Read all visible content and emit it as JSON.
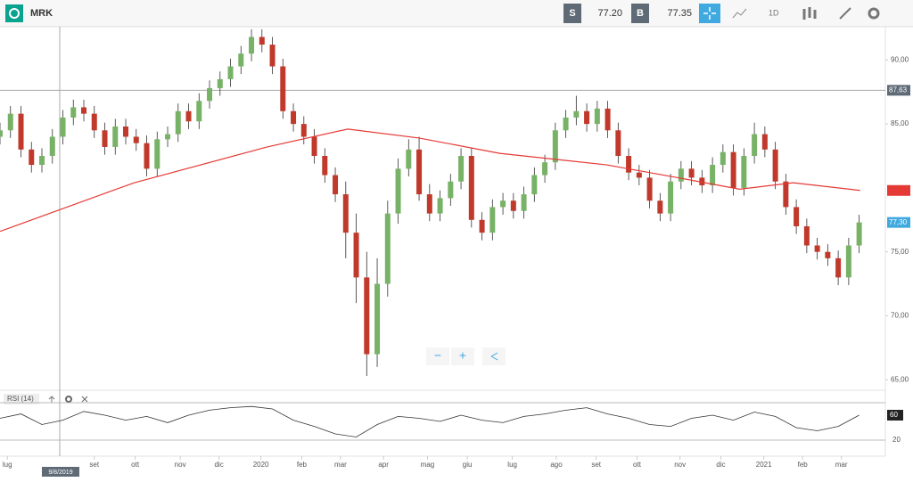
{
  "toolbar": {
    "symbol": "MRK",
    "sell_label": "S",
    "sell_price": "77.20",
    "buy_label": "B",
    "buy_price": "77.35",
    "interval": "1D"
  },
  "controls": {
    "zoom_out": "−",
    "zoom_in": "+"
  },
  "chart_data": {
    "type": "candlestick",
    "xlim": [
      0,
      84.5
    ],
    "ylim": [
      64.6,
      92.6
    ],
    "xticks": [
      {
        "value": 0.7,
        "label": "lug"
      },
      {
        "value": 9.0,
        "label": "set"
      },
      {
        "value": 12.9,
        "label": "ott"
      },
      {
        "value": 17.2,
        "label": "nov"
      },
      {
        "value": 20.9,
        "label": "dic"
      },
      {
        "value": 24.9,
        "label": "2020"
      },
      {
        "value": 28.8,
        "label": "feb"
      },
      {
        "value": 32.5,
        "label": "mar"
      },
      {
        "value": 36.6,
        "label": "apr"
      },
      {
        "value": 40.8,
        "label": "mag"
      },
      {
        "value": 44.6,
        "label": "giu"
      },
      {
        "value": 48.9,
        "label": "lug"
      },
      {
        "value": 53.1,
        "label": "ago"
      },
      {
        "value": 56.9,
        "label": "set"
      },
      {
        "value": 60.8,
        "label": "ott"
      },
      {
        "value": 64.9,
        "label": "nov"
      },
      {
        "value": 68.8,
        "label": "dic"
      },
      {
        "value": 72.9,
        "label": "2021"
      },
      {
        "value": 76.6,
        "label": "feb"
      },
      {
        "value": 80.3,
        "label": "mar"
      }
    ],
    "yticks": [
      {
        "value": 90,
        "label": "90,00"
      },
      {
        "value": 85,
        "label": "85,00"
      },
      {
        "value": 75,
        "label": "75,00"
      },
      {
        "value": 70,
        "label": "70,00"
      },
      {
        "value": 65,
        "label": "65,00"
      }
    ],
    "up_color": "#77b267",
    "down_color": "#c0392b",
    "candles": {
      "open": [
        84.0,
        84.5,
        85.8,
        83.0,
        81.8,
        82.5,
        84.0,
        85.5,
        86.3,
        85.8,
        84.5,
        83.2,
        84.8,
        84.0,
        83.5,
        81.5,
        83.8,
        84.2,
        86.0,
        85.2,
        86.8,
        87.8,
        88.5,
        89.5,
        90.5,
        91.8,
        91.2,
        89.5,
        86.0,
        85.0,
        84.0,
        82.5,
        81.0,
        79.5,
        76.5,
        73.0,
        67.0,
        72.5,
        78.0,
        81.5,
        83.0,
        79.5,
        78.0,
        79.2,
        80.5,
        82.5,
        77.5,
        76.5,
        78.5,
        79.0,
        78.2,
        79.5,
        81.0,
        82.0,
        84.5,
        85.5,
        86.0,
        85.0,
        86.2,
        84.5,
        82.5,
        81.2,
        80.8,
        79.0,
        78.0,
        80.5,
        81.5,
        80.8,
        80.2,
        81.8,
        82.8,
        80.0,
        82.5,
        84.2,
        83.0,
        80.5,
        78.5,
        77.0,
        75.5,
        75.0,
        74.5,
        73.0,
        75.5
      ],
      "high": [
        85.1,
        86.4,
        86.4,
        83.6,
        83.1,
        84.6,
        86.1,
        86.9,
        86.9,
        86.4,
        85.1,
        85.4,
        85.4,
        84.6,
        84.1,
        84.4,
        84.8,
        86.6,
        86.6,
        87.4,
        88.4,
        89.1,
        90.1,
        91.1,
        92.4,
        92.4,
        91.8,
        90.1,
        86.6,
        85.6,
        84.6,
        83.1,
        81.6,
        80.5,
        78.0,
        75.0,
        74.5,
        79.0,
        82.3,
        83.8,
        84.0,
        80.3,
        79.8,
        81.1,
        83.1,
        83.1,
        78.1,
        79.1,
        79.6,
        79.6,
        80.1,
        81.6,
        82.6,
        85.1,
        86.1,
        87.2,
        86.6,
        86.8,
        86.8,
        85.1,
        83.1,
        81.8,
        81.4,
        79.6,
        81.1,
        82.1,
        82.1,
        81.4,
        82.4,
        83.4,
        83.4,
        83.1,
        85.1,
        84.8,
        83.6,
        81.1,
        79.1,
        77.6,
        76.1,
        75.6,
        75.1,
        76.1,
        77.9
      ],
      "low": [
        83.4,
        83.9,
        82.4,
        81.2,
        81.2,
        81.9,
        83.4,
        84.9,
        85.2,
        83.9,
        82.6,
        82.6,
        83.4,
        82.9,
        80.9,
        80.9,
        83.2,
        83.6,
        84.6,
        84.6,
        86.2,
        87.2,
        87.9,
        88.9,
        89.9,
        90.6,
        88.9,
        85.4,
        84.4,
        83.4,
        81.9,
        80.4,
        78.9,
        74.5,
        71.0,
        65.3,
        66.0,
        71.5,
        77.2,
        80.9,
        79.0,
        77.4,
        77.4,
        78.6,
        79.9,
        76.9,
        75.9,
        75.9,
        77.9,
        77.6,
        77.6,
        78.9,
        80.4,
        81.4,
        83.9,
        84.9,
        84.4,
        84.4,
        83.9,
        81.9,
        80.6,
        80.2,
        78.4,
        77.4,
        77.4,
        79.9,
        80.2,
        79.6,
        79.6,
        81.2,
        79.4,
        79.4,
        81.9,
        82.4,
        79.9,
        77.9,
        76.4,
        74.9,
        74.4,
        73.9,
        72.4,
        72.4,
        74.9
      ],
      "close": [
        84.5,
        85.8,
        83.0,
        81.8,
        82.5,
        84.0,
        85.5,
        86.3,
        85.8,
        84.5,
        83.2,
        84.8,
        84.0,
        83.5,
        81.5,
        83.8,
        84.2,
        86.0,
        85.2,
        86.8,
        87.8,
        88.5,
        89.5,
        90.5,
        91.8,
        91.2,
        89.5,
        86.0,
        85.0,
        84.0,
        82.5,
        81.0,
        79.5,
        76.5,
        73.0,
        67.0,
        72.5,
        78.0,
        81.5,
        83.0,
        79.5,
        78.0,
        79.2,
        80.5,
        82.5,
        77.5,
        76.5,
        78.5,
        79.0,
        78.2,
        79.5,
        81.0,
        82.0,
        84.5,
        85.5,
        86.0,
        85.0,
        86.2,
        84.5,
        82.5,
        81.2,
        80.8,
        79.0,
        78.0,
        80.5,
        81.5,
        80.8,
        80.2,
        81.8,
        82.8,
        80.0,
        82.5,
        84.2,
        83.0,
        80.5,
        78.5,
        77.0,
        75.5,
        75.0,
        74.5,
        73.0,
        75.5,
        77.3
      ]
    },
    "moving_average": {
      "color": "#e53935",
      "x": [
        0,
        12.8,
        25.5,
        33.2,
        40,
        47.7,
        57.9,
        64.7,
        70.6,
        75.7,
        82.1
      ],
      "values": [
        76.6,
        80.4,
        83.2,
        84.6,
        83.9,
        82.7,
        81.8,
        80.8,
        79.9,
        80.4,
        79.8
      ]
    },
    "crosshair": {
      "x": 5.7,
      "x_label": "9/8/2019",
      "y": {
        "value": 87.63,
        "label": "87,63"
      }
    },
    "last_price": {
      "value": 77.3,
      "label": "77,30"
    },
    "rsi": {
      "title": "RSI (14)",
      "ylim": [
        0,
        80
      ],
      "yticks": [
        20
      ],
      "levels": [
        80,
        20
      ],
      "last": 60,
      "x": [
        0,
        2,
        4,
        6,
        8,
        10,
        12,
        14,
        16,
        18,
        20,
        22,
        24,
        26,
        28,
        30,
        32,
        34,
        36,
        38,
        40,
        42,
        44,
        46,
        48,
        50,
        52,
        54,
        56,
        58,
        60,
        62,
        64,
        66,
        68,
        70,
        72,
        74,
        76,
        78,
        80,
        82
      ],
      "values": [
        55,
        62,
        45,
        52,
        66,
        60,
        52,
        58,
        48,
        60,
        68,
        72,
        74,
        70,
        52,
        42,
        30,
        25,
        45,
        58,
        55,
        50,
        60,
        52,
        48,
        58,
        62,
        68,
        72,
        62,
        55,
        45,
        42,
        55,
        60,
        52,
        65,
        58,
        40,
        35,
        42,
        60
      ]
    }
  }
}
